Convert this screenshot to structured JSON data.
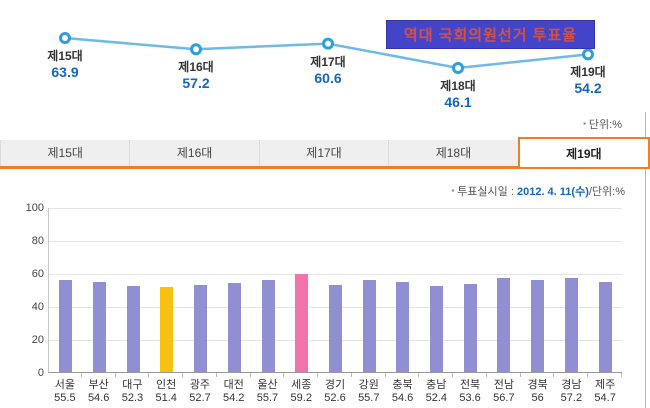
{
  "title_banner": "역대 국회의원선거 투표율",
  "notes": {
    "bullet": "▪",
    "unit": "단위:%",
    "vote_prefix": "투표실시일 : ",
    "vote_date": "2012. 4. 11(수)",
    "vote_suffix": "/단위:%"
  },
  "colors": {
    "line": "#6FB9E6",
    "marker_stroke": "#2D9FDD",
    "banner_bg": "#4444CB",
    "banner_text": "#D8503C",
    "tab_accent": "#EE7F22",
    "value_blue": "#1565C0",
    "bar_default": "#8F8FD2",
    "bar_incheon": "#F6C113",
    "bar_sejong": "#F173AC"
  },
  "tabs": [
    {
      "label": "제15대",
      "active": false
    },
    {
      "label": "제16대",
      "active": false
    },
    {
      "label": "제17대",
      "active": false
    },
    {
      "label": "제18대",
      "active": false
    },
    {
      "label": "제19대",
      "active": true
    }
  ],
  "chart_data": [
    {
      "type": "line",
      "title": "역대 국회의원선거 투표율",
      "unit": "%",
      "categories": [
        "제15대",
        "제16대",
        "제17대",
        "제18대",
        "제19대"
      ],
      "values": [
        63.9,
        57.2,
        60.6,
        46.1,
        54.2
      ],
      "legend_position": "none",
      "grid": false
    },
    {
      "type": "bar",
      "note": "투표실시일 : 2012. 4. 11(수)/단위:%",
      "unit": "%",
      "categories": [
        "서울",
        "부산",
        "대구",
        "인천",
        "광주",
        "대전",
        "울산",
        "세종",
        "경기",
        "강원",
        "충북",
        "충남",
        "전북",
        "전남",
        "경북",
        "경남",
        "제주"
      ],
      "values": [
        55.5,
        54.6,
        52.3,
        51.4,
        52.7,
        54.2,
        55.7,
        59.2,
        52.6,
        55.7,
        54.6,
        52.4,
        53.6,
        56.7,
        56,
        57.2,
        54.7
      ],
      "bar_colors": [
        "#8F8FD2",
        "#8F8FD2",
        "#8F8FD2",
        "#F6C113",
        "#8F8FD2",
        "#8F8FD2",
        "#8F8FD2",
        "#F173AC",
        "#8F8FD2",
        "#8F8FD2",
        "#8F8FD2",
        "#8F8FD2",
        "#8F8FD2",
        "#8F8FD2",
        "#8F8FD2",
        "#8F8FD2",
        "#8F8FD2"
      ],
      "ylim": [
        0,
        100
      ],
      "yticks": [
        0,
        20,
        40,
        60,
        80,
        100
      ],
      "grid": true,
      "legend_position": "none"
    }
  ]
}
